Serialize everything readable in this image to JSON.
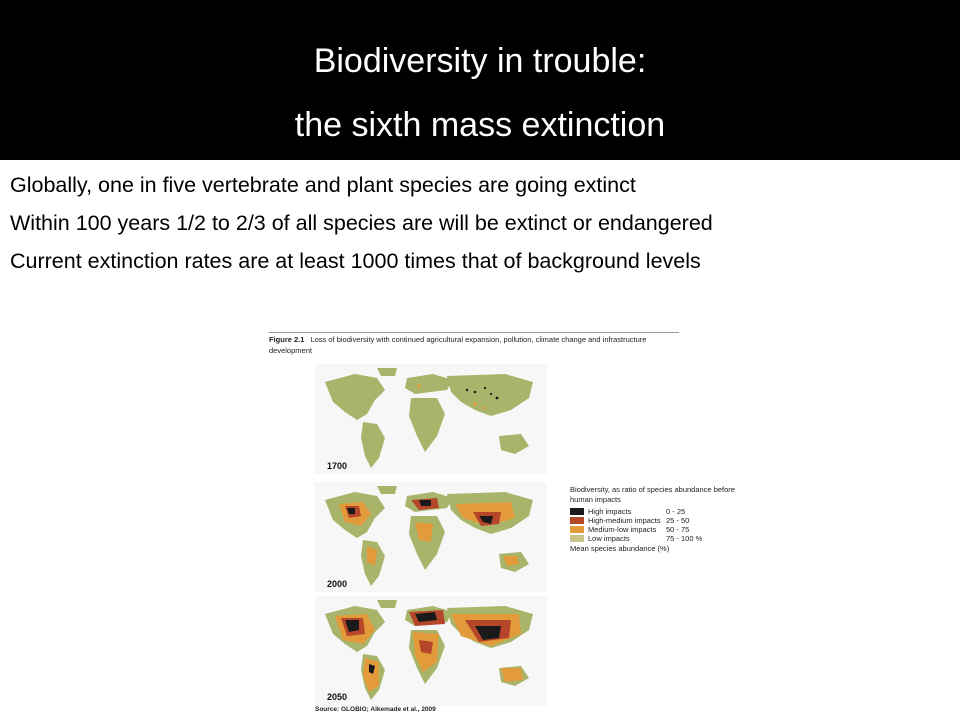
{
  "title": {
    "line1": "Biodiversity in trouble:",
    "line2": "the sixth mass extinction"
  },
  "bullets": [
    "Globally, one in five vertebrate and plant species are going extinct",
    "Within 100 years 1/2 to 2/3 of all species are will be extinct or endangered",
    "Current extinction rates are at least 1000 times that of background levels"
  ],
  "figure": {
    "number": "Figure 2.1",
    "caption": "Loss of biodiversity with continued agricultural expansion, pollution, climate change and infrastructure development",
    "maps": [
      {
        "year": "1700"
      },
      {
        "year": "2000"
      },
      {
        "year": "2050"
      }
    ],
    "legend": {
      "title": "Biodiversity, as ratio of species abundance before human impacts",
      "items": [
        {
          "label": "High impacts",
          "range": "0 - 25",
          "color": "#1a1a1a"
        },
        {
          "label": "High-medium impacts",
          "range": "25 - 50",
          "color": "#b5462a"
        },
        {
          "label": "Medium-low impacts",
          "range": "50 - 75",
          "color": "#e39a3a"
        },
        {
          "label": "Low impacts",
          "range": "75 - 100 %",
          "color": "#c9c48a"
        }
      ],
      "footer": "Mean species abundance (%)"
    },
    "source": "Source: GLOBIO; Alkemade et al., 2009"
  },
  "colors": {
    "header_bg": "#000000",
    "header_text": "#ffffff",
    "land_base": "#a9b46b",
    "ocean": "#f7f7f7"
  }
}
